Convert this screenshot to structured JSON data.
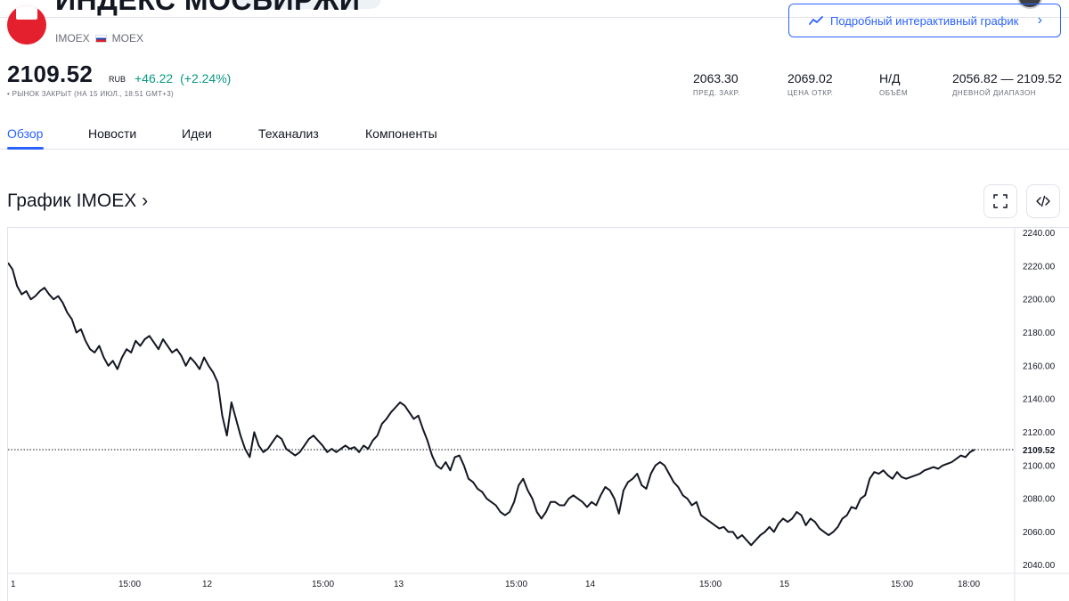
{
  "header": {
    "title": "ИНДЕКС МОСБИРЖИ",
    "ticker": "IMOEX",
    "exchange": "MOEX",
    "detail_chart_label": "Подробный интерактивный график",
    "detail_chart_icon": "trend-line-icon"
  },
  "quote": {
    "price": "2109.52",
    "currency": "RUB",
    "change": "+46.22",
    "change_pct": "(+2.24%)",
    "status": "• РЫНОК ЗАКРЫТ (НА 15 ИЮЛ., 18:51 GMT+3)",
    "accent_up": "#089981"
  },
  "stats": [
    {
      "value": "2063.30",
      "label": "ПРЕД. ЗАКР."
    },
    {
      "value": "2069.02",
      "label": "ЦЕНА ОТКР."
    },
    {
      "value": "Н/Д",
      "label": "ОБЪЁМ"
    },
    {
      "value": "2056.82 — 2109.52",
      "label": "ДНЕВНОЙ ДИАПАЗОН"
    }
  ],
  "tabs": [
    {
      "label": "Обзор",
      "active": true
    },
    {
      "label": "Новости",
      "active": false
    },
    {
      "label": "Идеи",
      "active": false
    },
    {
      "label": "Теханализ",
      "active": false
    },
    {
      "label": "Компоненты",
      "active": false
    }
  ],
  "chart_section": {
    "title": "График IMOEX ›",
    "fullscreen_icon": "fullscreen-icon",
    "embed_icon": "embed-code-icon"
  },
  "chart_data": {
    "type": "line",
    "title": "",
    "xlabel": "",
    "ylabel": "",
    "ylim": [
      2035,
      2243
    ],
    "y_ticks": [
      "2040.00",
      "2060.00",
      "2080.00",
      "2100.00",
      "2120.00",
      "2140.00",
      "2160.00",
      "2180.00",
      "2200.00",
      "2220.00",
      "2240.00"
    ],
    "x_tick_labels": [
      "1",
      "15:00",
      "12",
      "15:00",
      "13",
      "15:00",
      "14",
      "15:00",
      "15",
      "15:00",
      "18:00"
    ],
    "last_value_label": "2109.52",
    "last_value": 2109.52,
    "grid": false,
    "line_color": "#131722",
    "series": [
      {
        "values": [
          2222,
          2218,
          2208,
          2203,
          2205,
          2200,
          2202,
          2205,
          2207,
          2203,
          2200,
          2202,
          2198,
          2192,
          2188,
          2180,
          2182,
          2175,
          2170,
          2168,
          2172,
          2165,
          2160,
          2163,
          2158,
          2165,
          2170,
          2168,
          2175,
          2172,
          2176,
          2178,
          2174,
          2170,
          2176,
          2172,
          2168,
          2170,
          2166,
          2160,
          2165,
          2162,
          2158,
          2165,
          2160,
          2156,
          2150,
          2130,
          2118,
          2138,
          2128,
          2118,
          2110,
          2105,
          2120,
          2112,
          2108,
          2110,
          2114,
          2118,
          2116,
          2110,
          2108,
          2106,
          2108,
          2112,
          2116,
          2118,
          2115,
          2112,
          2108,
          2110,
          2108,
          2110,
          2112,
          2110,
          2111,
          2108,
          2112,
          2110,
          2115,
          2118,
          2125,
          2128,
          2132,
          2135,
          2138,
          2136,
          2132,
          2128,
          2130,
          2122,
          2115,
          2106,
          2100,
          2098,
          2102,
          2097,
          2105,
          2106,
          2100,
          2092,
          2090,
          2086,
          2084,
          2080,
          2078,
          2076,
          2072,
          2070,
          2072,
          2078,
          2088,
          2092,
          2085,
          2080,
          2072,
          2068,
          2072,
          2078,
          2078,
          2076,
          2076,
          2080,
          2082,
          2080,
          2078,
          2075,
          2078,
          2076,
          2082,
          2087,
          2085,
          2080,
          2071,
          2085,
          2090,
          2092,
          2095,
          2088,
          2086,
          2095,
          2100,
          2102,
          2100,
          2095,
          2090,
          2087,
          2082,
          2080,
          2076,
          2078,
          2070,
          2068,
          2066,
          2064,
          2062,
          2063,
          2060,
          2060,
          2056,
          2058,
          2055,
          2052,
          2055,
          2058,
          2060,
          2063,
          2060,
          2065,
          2068,
          2066,
          2068,
          2072,
          2070,
          2064,
          2068,
          2066,
          2062,
          2060,
          2058,
          2060,
          2063,
          2068,
          2070,
          2075,
          2074,
          2080,
          2082,
          2092,
          2096,
          2095,
          2097,
          2094,
          2092,
          2096,
          2093,
          2092,
          2093,
          2094,
          2095,
          2097,
          2098,
          2099,
          2098,
          2100,
          2101,
          2102,
          2104,
          2106,
          2105,
          2108,
          2109.52
        ]
      }
    ]
  }
}
